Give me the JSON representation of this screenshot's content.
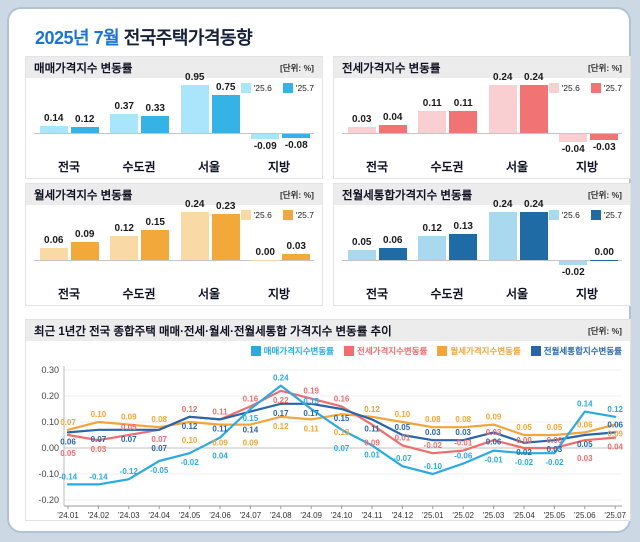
{
  "page": {
    "title_highlight": "2025년 7월",
    "title_rest": " 전국주택가격동향"
  },
  "chart_data": [
    {
      "type": "bar",
      "title": "매매가격지수 변동률",
      "unit": "[단위: %]",
      "categories": [
        "전국",
        "수도권",
        "서울",
        "지방"
      ],
      "series": [
        {
          "name": "'25.6",
          "color": "#a9e5fb",
          "values": [
            0.14,
            0.37,
            0.95,
            -0.09
          ]
        },
        {
          "name": "'25.7",
          "color": "#36b3e6",
          "values": [
            0.12,
            0.33,
            0.75,
            -0.08
          ]
        }
      ]
    },
    {
      "type": "bar",
      "title": "전세가격지수 변동률",
      "unit": "[단위: %]",
      "categories": [
        "전국",
        "수도권",
        "서울",
        "지방"
      ],
      "series": [
        {
          "name": "'25.6",
          "color": "#f9cfd2",
          "values": [
            0.03,
            0.11,
            0.24,
            -0.04
          ]
        },
        {
          "name": "'25.7",
          "color": "#f17373",
          "values": [
            0.04,
            0.11,
            0.24,
            -0.03
          ]
        }
      ]
    },
    {
      "type": "bar",
      "title": "월세가격지수 변동률",
      "unit": "[단위: %]",
      "categories": [
        "전국",
        "수도권",
        "서울",
        "지방"
      ],
      "series": [
        {
          "name": "'25.6",
          "color": "#fadaa4",
          "values": [
            0.06,
            0.12,
            0.24,
            0.0
          ]
        },
        {
          "name": "'25.7",
          "color": "#f3a83a",
          "values": [
            0.09,
            0.15,
            0.23,
            0.03
          ]
        }
      ]
    },
    {
      "type": "bar",
      "title": "전월세통합가격지수 변동률",
      "unit": "[단위: %]",
      "categories": [
        "전국",
        "수도권",
        "서울",
        "지방"
      ],
      "series": [
        {
          "name": "'25.6",
          "color": "#a9d9ef",
          "values": [
            0.05,
            0.12,
            0.24,
            -0.02
          ]
        },
        {
          "name": "'25.7",
          "color": "#1f6ba6",
          "values": [
            0.06,
            0.13,
            0.24,
            0.0
          ]
        }
      ]
    },
    {
      "type": "line",
      "title": "최근 1년간 전국 종합주택 매매·전세·월세·전월세통합 가격지수 변동률 추이",
      "unit": "[단위: %]",
      "x": [
        "'24.01",
        "'24.02",
        "'24.03",
        "'24.04",
        "'24.05",
        "'24.06",
        "'24.07",
        "'24.08",
        "'24.09",
        "'24.10",
        "'24.11",
        "'24.12",
        "'25.01",
        "'25.02",
        "'25.03",
        "'25.04",
        "'25.05",
        "'25.06",
        "'25.07"
      ],
      "ylim": [
        -0.2,
        0.3
      ],
      "yticks": [
        0.3,
        0.2,
        0.1,
        0.0,
        -0.1,
        -0.2
      ],
      "legend_position": "top-right",
      "grid": true,
      "series": [
        {
          "name": "매매가격지수변동률",
          "color": "#29abe2",
          "values": [
            -0.14,
            -0.14,
            -0.12,
            -0.05,
            -0.02,
            0.04,
            0.15,
            0.24,
            0.15,
            0.07,
            0.01,
            -0.07,
            -0.1,
            -0.06,
            -0.01,
            -0.02,
            -0.02,
            0.14,
            0.12
          ]
        },
        {
          "name": "전세가격지수변동률",
          "color": "#ef6d6d",
          "values": [
            0.05,
            0.03,
            0.05,
            0.07,
            0.12,
            0.11,
            0.16,
            0.22,
            0.19,
            0.16,
            0.09,
            0.01,
            -0.02,
            -0.01,
            0.03,
            0.0,
            0.0,
            0.03,
            0.04
          ]
        },
        {
          "name": "월세가격지수변동률",
          "color": "#f2a53a",
          "values": [
            0.07,
            0.1,
            0.09,
            0.08,
            0.1,
            0.09,
            0.09,
            0.12,
            0.11,
            0.13,
            0.12,
            0.1,
            0.08,
            0.08,
            0.09,
            0.05,
            0.05,
            0.06,
            0.09
          ]
        },
        {
          "name": "전월세통합지수변동률",
          "color": "#2766ab",
          "values": [
            0.06,
            0.07,
            0.07,
            0.07,
            0.12,
            0.11,
            0.14,
            0.17,
            0.17,
            0.15,
            0.11,
            0.05,
            0.03,
            0.03,
            0.06,
            0.02,
            0.03,
            0.05,
            0.06
          ]
        }
      ]
    }
  ]
}
